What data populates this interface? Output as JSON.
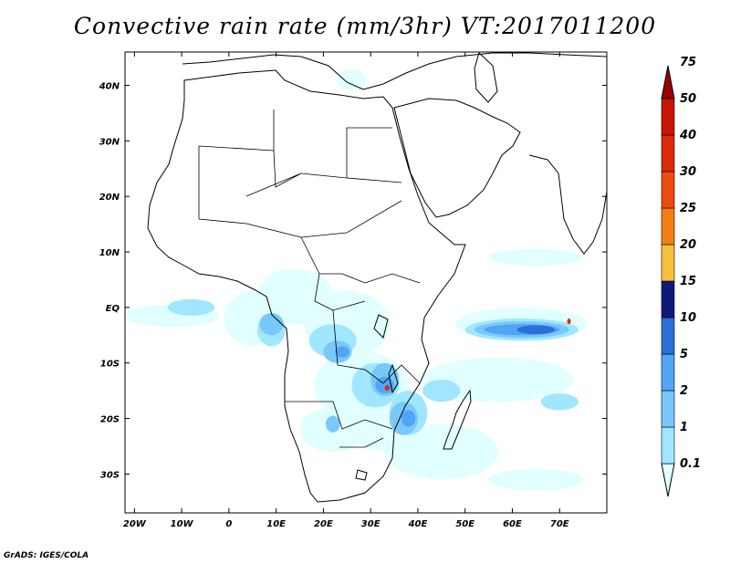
{
  "title": "Convective rain rate (mm/3hr) VT:2017011200",
  "credit": "GrADS: IGES/COLA",
  "map": {
    "lon_range": [
      -22,
      80
    ],
    "lat_range": [
      -37,
      46
    ],
    "lon_ticks": [
      {
        "lon": -20,
        "label": "20W"
      },
      {
        "lon": -10,
        "label": "10W"
      },
      {
        "lon": 0,
        "label": "0"
      },
      {
        "lon": 10,
        "label": "10E"
      },
      {
        "lon": 20,
        "label": "20E"
      },
      {
        "lon": 30,
        "label": "30E"
      },
      {
        "lon": 40,
        "label": "40E"
      },
      {
        "lon": 50,
        "label": "50E"
      },
      {
        "lon": 60,
        "label": "60E"
      },
      {
        "lon": 70,
        "label": "70E"
      }
    ],
    "lat_ticks": [
      {
        "lat": 40,
        "label": "40N"
      },
      {
        "lat": 30,
        "label": "30N"
      },
      {
        "lat": 20,
        "label": "20N"
      },
      {
        "lat": 10,
        "label": "10N"
      },
      {
        "lat": 0,
        "label": "EQ"
      },
      {
        "lat": -10,
        "label": "10S"
      },
      {
        "lat": -20,
        "label": "20S"
      },
      {
        "lat": -30,
        "label": "30S"
      }
    ]
  },
  "colorbar": {
    "levels": [
      "0.1",
      "1",
      "2",
      "5",
      "10",
      "15",
      "20",
      "25",
      "30",
      "40",
      "50",
      "75"
    ],
    "colors": [
      "#e1ffff",
      "#a0e6ff",
      "#78c8fa",
      "#50a5f5",
      "#2a6fd8",
      "#0f1a78",
      "#f5c03c",
      "#f57d15",
      "#f04b0f",
      "#dc2a0a",
      "#c81405",
      "#9b0000"
    ]
  },
  "rain_cells": [
    {
      "lon": -12,
      "lat": -1.5,
      "rlon": 10,
      "rlat": 2,
      "level": 0
    },
    {
      "lon": 5,
      "lat": -2,
      "rlon": 6,
      "rlat": 5,
      "level": 0
    },
    {
      "lon": 14,
      "lat": 2,
      "rlon": 8,
      "rlat": 5,
      "level": 0
    },
    {
      "lon": 25,
      "lat": -3,
      "rlon": 9,
      "rlat": 6,
      "level": 0
    },
    {
      "lon": 28,
      "lat": -14,
      "rlon": 10,
      "rlat": 6,
      "level": 0
    },
    {
      "lon": 33,
      "lat": -20,
      "rlon": 8,
      "rlat": 6,
      "level": 0
    },
    {
      "lon": 22,
      "lat": -22,
      "rlon": 7,
      "rlat": 4,
      "level": 0
    },
    {
      "lon": 45,
      "lat": -26,
      "rlon": 12,
      "rlat": 5,
      "level": 0
    },
    {
      "lon": 57,
      "lat": -13,
      "rlon": 16,
      "rlat": 4,
      "level": 0
    },
    {
      "lon": 62,
      "lat": -3,
      "rlon": 14,
      "rlat": 3,
      "level": 0
    },
    {
      "lon": 65,
      "lat": 9,
      "rlon": 10,
      "rlat": 1.5,
      "level": 0
    },
    {
      "lon": 65,
      "lat": -31,
      "rlon": 10,
      "rlat": 2,
      "level": 0
    },
    {
      "lon": 26,
      "lat": 41,
      "rlon": 3,
      "rlat": 2,
      "level": 0
    },
    {
      "lon": -8,
      "lat": 0,
      "rlon": 5,
      "rlat": 1.5,
      "level": 1
    },
    {
      "lon": 9,
      "lat": -4,
      "rlon": 3,
      "rlat": 3,
      "level": 1
    },
    {
      "lon": 22,
      "lat": -6,
      "rlon": 5,
      "rlat": 3,
      "level": 1
    },
    {
      "lon": 31,
      "lat": -14,
      "rlon": 5,
      "rlat": 4,
      "level": 1
    },
    {
      "lon": 38,
      "lat": -19,
      "rlon": 4,
      "rlat": 4,
      "level": 1
    },
    {
      "lon": 45,
      "lat": -15,
      "rlon": 4,
      "rlat": 2,
      "level": 1
    },
    {
      "lon": 62,
      "lat": -4,
      "rlon": 12,
      "rlat": 2,
      "level": 1
    },
    {
      "lon": 70,
      "lat": -17,
      "rlon": 4,
      "rlat": 1.5,
      "level": 1
    },
    {
      "lon": 9,
      "lat": -3,
      "rlon": 2.5,
      "rlat": 2,
      "level": 2
    },
    {
      "lon": 23,
      "lat": -8,
      "rlon": 3,
      "rlat": 2,
      "level": 2
    },
    {
      "lon": 33,
      "lat": -13,
      "rlon": 3,
      "rlat": 3,
      "level": 2
    },
    {
      "lon": 37,
      "lat": -20,
      "rlon": 3,
      "rlat": 3,
      "level": 2
    },
    {
      "lon": 62,
      "lat": -4,
      "rlon": 10,
      "rlat": 1.5,
      "level": 2
    },
    {
      "lon": 22,
      "lat": -21,
      "rlon": 1.5,
      "rlat": 1.5,
      "level": 2
    },
    {
      "lon": 62,
      "lat": -4,
      "rlon": 8,
      "rlat": 1,
      "level": 3
    },
    {
      "lon": 33,
      "lat": -14,
      "rlon": 2,
      "rlat": 1.5,
      "level": 3
    },
    {
      "lon": 24,
      "lat": -8,
      "rlon": 1.5,
      "rlat": 1,
      "level": 3
    },
    {
      "lon": 38,
      "lat": -20,
      "rlon": 1.5,
      "rlat": 1.5,
      "level": 3
    },
    {
      "lon": 65,
      "lat": -4,
      "rlon": 4,
      "rlat": 0.8,
      "level": 4
    },
    {
      "lon": 33.5,
      "lat": -14.5,
      "rlon": 0.5,
      "rlat": 0.5,
      "level": 9
    },
    {
      "lon": 72,
      "lat": -2.5,
      "rlon": 0.4,
      "rlat": 0.5,
      "level": 9
    }
  ]
}
